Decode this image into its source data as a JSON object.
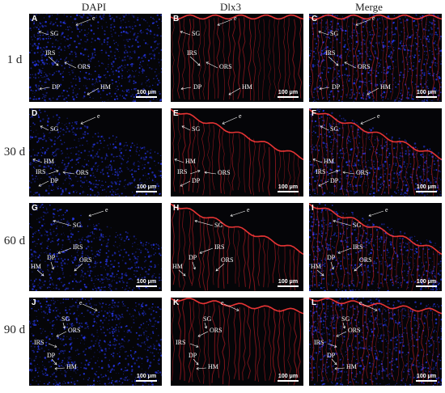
{
  "columns": [
    "DAPI",
    "Dlx3",
    "Merge"
  ],
  "rows": [
    "1 d",
    "30 d",
    "60 d",
    "90 d"
  ],
  "scale_bar": "100 μm",
  "channel_colors": {
    "DAPI": "#2a3cff",
    "Dlx3": "#e0202a",
    "Merge": "#b04cc8"
  },
  "panels": [
    {
      "letter": "A",
      "channel": "DAPI",
      "labels": {
        "e": "e",
        "sg": "SG",
        "irs": "IRS",
        "ors": "ORS",
        "dp": "DP",
        "hm": "HM"
      }
    },
    {
      "letter": "B",
      "channel": "Dlx3",
      "labels": {
        "e": "e",
        "sg": "SG",
        "irs": "IRS",
        "ors": "ORS",
        "dp": "DP",
        "hm": "HM"
      }
    },
    {
      "letter": "C",
      "channel": "Merge",
      "labels": {
        "e": "e",
        "sg": "SG",
        "irs": "IRS",
        "ors": "ORS",
        "dp": "DP",
        "hm": "HM"
      }
    },
    {
      "letter": "D",
      "channel": "DAPI",
      "labels": {
        "e": "e",
        "sg": "SG",
        "hm": "HM",
        "irs": "IRS",
        "dp": "DP",
        "ors": "ORS"
      }
    },
    {
      "letter": "E",
      "channel": "Dlx3",
      "labels": {
        "e": "e",
        "sg": "SG",
        "hm": "HM",
        "irs": "IRS",
        "dp": "DP",
        "ors": "ORS"
      }
    },
    {
      "letter": "F",
      "channel": "Merge",
      "labels": {
        "e": "e",
        "sg": "SG",
        "hm": "HM",
        "irs": "IRS",
        "dp": "DP",
        "ors": "ORS"
      }
    },
    {
      "letter": "G",
      "channel": "DAPI",
      "labels": {
        "e": "e",
        "sg": "SG",
        "irs": "IRS",
        "dp": "DP",
        "ors": "ORS",
        "hm": "HM"
      }
    },
    {
      "letter": "H",
      "channel": "Dlx3",
      "labels": {
        "e": "e",
        "sg": "SG",
        "irs": "IRS",
        "dp": "DP",
        "ors": "ORS",
        "hm": "HM"
      }
    },
    {
      "letter": "I",
      "channel": "Merge",
      "labels": {
        "e": "e",
        "sg": "SG",
        "irs": "IRS",
        "dp": "DP",
        "ors": "ORS",
        "hm": "HM"
      }
    },
    {
      "letter": "J",
      "channel": "DAPI",
      "labels": {
        "e": "e",
        "sg": "SG",
        "ors": "ORS",
        "irs": "IRS",
        "dp": "DP",
        "hm": "HM"
      }
    },
    {
      "letter": "K",
      "channel": "Dlx3",
      "labels": {
        "e": "e",
        "sg": "SG",
        "ors": "ORS",
        "irs": "IRS",
        "dp": "DP",
        "hm": "HM"
      }
    },
    {
      "letter": "L",
      "channel": "Merge",
      "labels": {
        "e": "e",
        "sg": "SG",
        "ors": "ORS",
        "irs": "IRS",
        "dp": "DP",
        "hm": "HM"
      }
    }
  ]
}
